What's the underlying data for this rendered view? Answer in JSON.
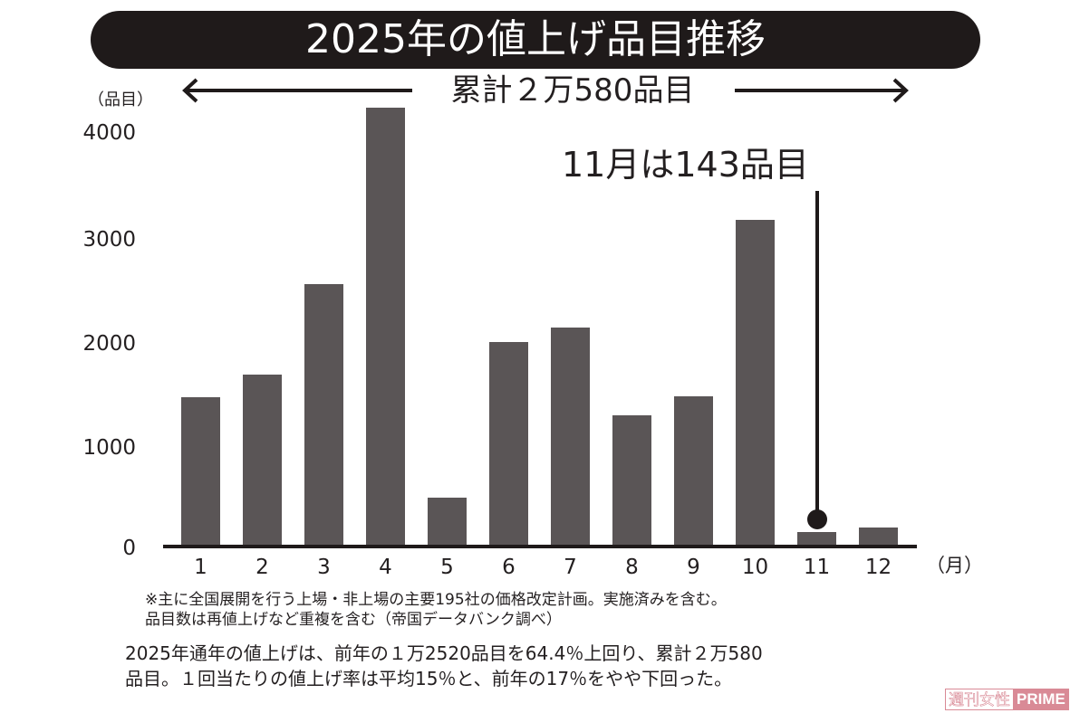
{
  "title": "2025年の値上げ品目推移",
  "total_label": "累計２万580品目",
  "y_unit": "（品目）",
  "x_unit": "（月）",
  "callout": {
    "text": "11月は143品目",
    "target_month": "11"
  },
  "notes": [
    "※主に全国展開を行う上場・非上場の主要195社の価格改定計画。実施済みを含む。",
    "品目数は再値上げなど重複を含む（帝国データバンク調べ）"
  ],
  "summary": [
    "2025年通年の値上げは、前年の１万2520品目を64.4％上回り、累計２万580",
    "品目。１回当たりの値上げ率は平均15％と、前年の17％をやや下回った。"
  ],
  "watermark": {
    "part1": "週刊女性",
    "part2": "PRIME",
    "color": "#d98a96"
  },
  "colors": {
    "bar": "#5a5556",
    "title_bg": "#1f1a1a",
    "text": "#231f20"
  },
  "chart_data": {
    "type": "bar",
    "title": "2025年の値上げ品目推移",
    "subtitle": "累計２万580品目",
    "xlabel": "（月）",
    "ylabel": "（品目）",
    "categories": [
      "1",
      "2",
      "3",
      "4",
      "5",
      "6",
      "7",
      "8",
      "9",
      "10",
      "11",
      "12"
    ],
    "values": [
      1440,
      1660,
      2530,
      4230,
      470,
      1970,
      2110,
      1260,
      1450,
      3150,
      143,
      180
    ],
    "yticks": [
      "0",
      "1000",
      "2000",
      "3000",
      "4000"
    ],
    "ylim": [
      0,
      4300
    ],
    "grid": false,
    "legend": null,
    "annotations": [
      "11月は143品目",
      "累計２万580品目"
    ]
  }
}
